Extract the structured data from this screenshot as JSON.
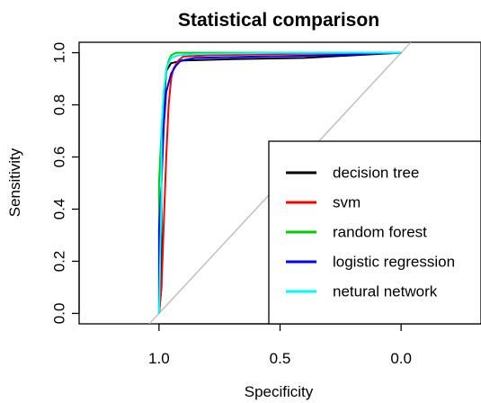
{
  "chart_data": {
    "type": "line",
    "title": "Statistical comparison",
    "xlabel": "Specificity",
    "ylabel": "Sensitivity",
    "x_reversed": true,
    "xlim": [
      1.33,
      -0.33
    ],
    "ylim": [
      -0.04,
      1.04
    ],
    "x_ticks": [
      "1.0",
      "0.5",
      "0.0"
    ],
    "x_tick_values": [
      1.0,
      0.5,
      0.0
    ],
    "y_ticks": [
      "0.0",
      "0.2",
      "0.4",
      "0.6",
      "0.8",
      "1.0"
    ],
    "y_tick_values": [
      0.0,
      0.2,
      0.4,
      0.6,
      0.8,
      1.0
    ],
    "legend_position": "bottom-right",
    "reference_line": {
      "from": [
        1.0,
        0.0
      ],
      "to": [
        0.0,
        1.0
      ],
      "color": "#c0c0c0"
    },
    "series": [
      {
        "name": "decision tree",
        "color": "#000000",
        "points": [
          [
            1.0,
            0.0
          ],
          [
            0.99,
            0.1
          ],
          [
            0.99,
            0.5
          ],
          [
            0.98,
            0.8
          ],
          [
            0.97,
            0.93
          ],
          [
            0.95,
            0.96
          ],
          [
            0.9,
            0.97
          ],
          [
            0.7,
            0.975
          ],
          [
            0.4,
            0.98
          ],
          [
            0.2,
            0.99
          ],
          [
            0.0,
            1.0
          ]
        ]
      },
      {
        "name": "svm",
        "color": "#ff0000",
        "points": [
          [
            1.0,
            0.0
          ],
          [
            0.99,
            0.1
          ],
          [
            0.98,
            0.35
          ],
          [
            0.97,
            0.6
          ],
          [
            0.96,
            0.8
          ],
          [
            0.95,
            0.9
          ],
          [
            0.94,
            0.94
          ],
          [
            0.92,
            0.97
          ],
          [
            0.9,
            0.985
          ],
          [
            0.8,
            0.99
          ],
          [
            0.5,
            0.995
          ],
          [
            0.0,
            1.0
          ]
        ]
      },
      {
        "name": "random forest",
        "color": "#00cc00",
        "points": [
          [
            1.0,
            0.0
          ],
          [
            1.0,
            0.5
          ],
          [
            0.99,
            0.7
          ],
          [
            0.98,
            0.85
          ],
          [
            0.97,
            0.93
          ],
          [
            0.96,
            0.97
          ],
          [
            0.95,
            0.99
          ],
          [
            0.93,
            1.0
          ],
          [
            0.0,
            1.0
          ]
        ]
      },
      {
        "name": "logistic regression",
        "color": "#0000ff",
        "points": [
          [
            1.0,
            0.0
          ],
          [
            1.0,
            0.32
          ],
          [
            0.99,
            0.5
          ],
          [
            0.98,
            0.72
          ],
          [
            0.97,
            0.85
          ],
          [
            0.95,
            0.92
          ],
          [
            0.93,
            0.95
          ],
          [
            0.91,
            0.97
          ],
          [
            0.85,
            0.98
          ],
          [
            0.6,
            0.985
          ],
          [
            0.3,
            0.99
          ],
          [
            0.0,
            1.0
          ]
        ]
      },
      {
        "name": "netural network",
        "color": "#00ffff",
        "points": [
          [
            1.0,
            0.0
          ],
          [
            0.99,
            0.45
          ],
          [
            0.99,
            0.7
          ],
          [
            0.98,
            0.85
          ],
          [
            0.97,
            0.94
          ],
          [
            0.95,
            0.98
          ],
          [
            0.92,
            0.99
          ],
          [
            0.85,
            0.995
          ],
          [
            0.5,
            1.0
          ],
          [
            0.0,
            1.0
          ]
        ]
      }
    ]
  }
}
